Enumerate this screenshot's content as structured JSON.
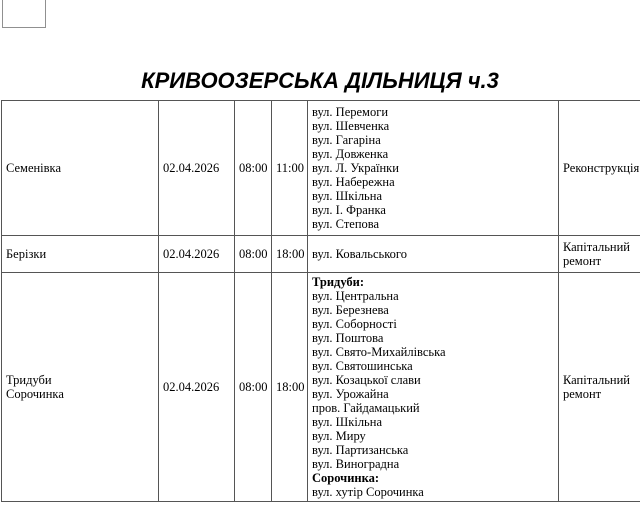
{
  "page": {
    "title": "КРИВООЗЕРСЬКА ДІЛЬНИЦЯ ч.3"
  },
  "colors": {
    "text": "#000000",
    "table_border": "#555555",
    "background": "#ffffff"
  },
  "table": {
    "columns": [
      "settlement",
      "date",
      "start_time",
      "end_time",
      "streets",
      "work_type"
    ],
    "rows": [
      {
        "settlement": "Семенівка",
        "date": "02.04.2026",
        "start_time": "08:00",
        "end_time": "11:00",
        "streets": [
          {
            "text": "вул. Перемоги",
            "bold": false
          },
          {
            "text": "вул. Шевченка",
            "bold": false
          },
          {
            "text": "вул. Гагаріна",
            "bold": false
          },
          {
            "text": "вул. Довженка",
            "bold": false
          },
          {
            "text": "вул. Л. Українки",
            "bold": false
          },
          {
            "text": "вул. Набережна",
            "bold": false
          },
          {
            "text": "вул. Шкільна",
            "bold": false
          },
          {
            "text": "вул. І. Франка",
            "bold": false
          },
          {
            "text": "вул. Степова",
            "bold": false
          }
        ],
        "work_type": "Реконструкція"
      },
      {
        "settlement": "Берізки",
        "date": "02.04.2026",
        "start_time": "08:00",
        "end_time": "18:00",
        "streets": [
          {
            "text": "вул. Ковальського",
            "bold": false
          }
        ],
        "work_type": "Капітальний ремонт"
      },
      {
        "settlement": "Тридуби\nСорочинка",
        "date": "02.04.2026",
        "start_time": "08:00",
        "end_time": "18:00",
        "streets": [
          {
            "text": "Тридуби:",
            "bold": true
          },
          {
            "text": "вул. Центральна",
            "bold": false
          },
          {
            "text": "вул. Березнева",
            "bold": false
          },
          {
            "text": "вул. Соборності",
            "bold": false
          },
          {
            "text": "вул. Поштова",
            "bold": false
          },
          {
            "text": "вул. Свято-Михайлівська",
            "bold": false
          },
          {
            "text": "вул. Святошинська",
            "bold": false
          },
          {
            "text": "вул. Козацької слави",
            "bold": false
          },
          {
            "text": "вул. Урожайна",
            "bold": false
          },
          {
            "text": "пров. Гайдамацький",
            "bold": false
          },
          {
            "text": "вул. Шкільна",
            "bold": false
          },
          {
            "text": "вул. Миру",
            "bold": false
          },
          {
            "text": "вул. Партизанська",
            "bold": false
          },
          {
            "text": "вул. Виноградна",
            "bold": false
          },
          {
            "text": "Сорочинка:",
            "bold": true
          },
          {
            "text": "вул. хутір Сорочинка",
            "bold": false
          }
        ],
        "work_type": "Капітальний ремонт"
      }
    ]
  }
}
